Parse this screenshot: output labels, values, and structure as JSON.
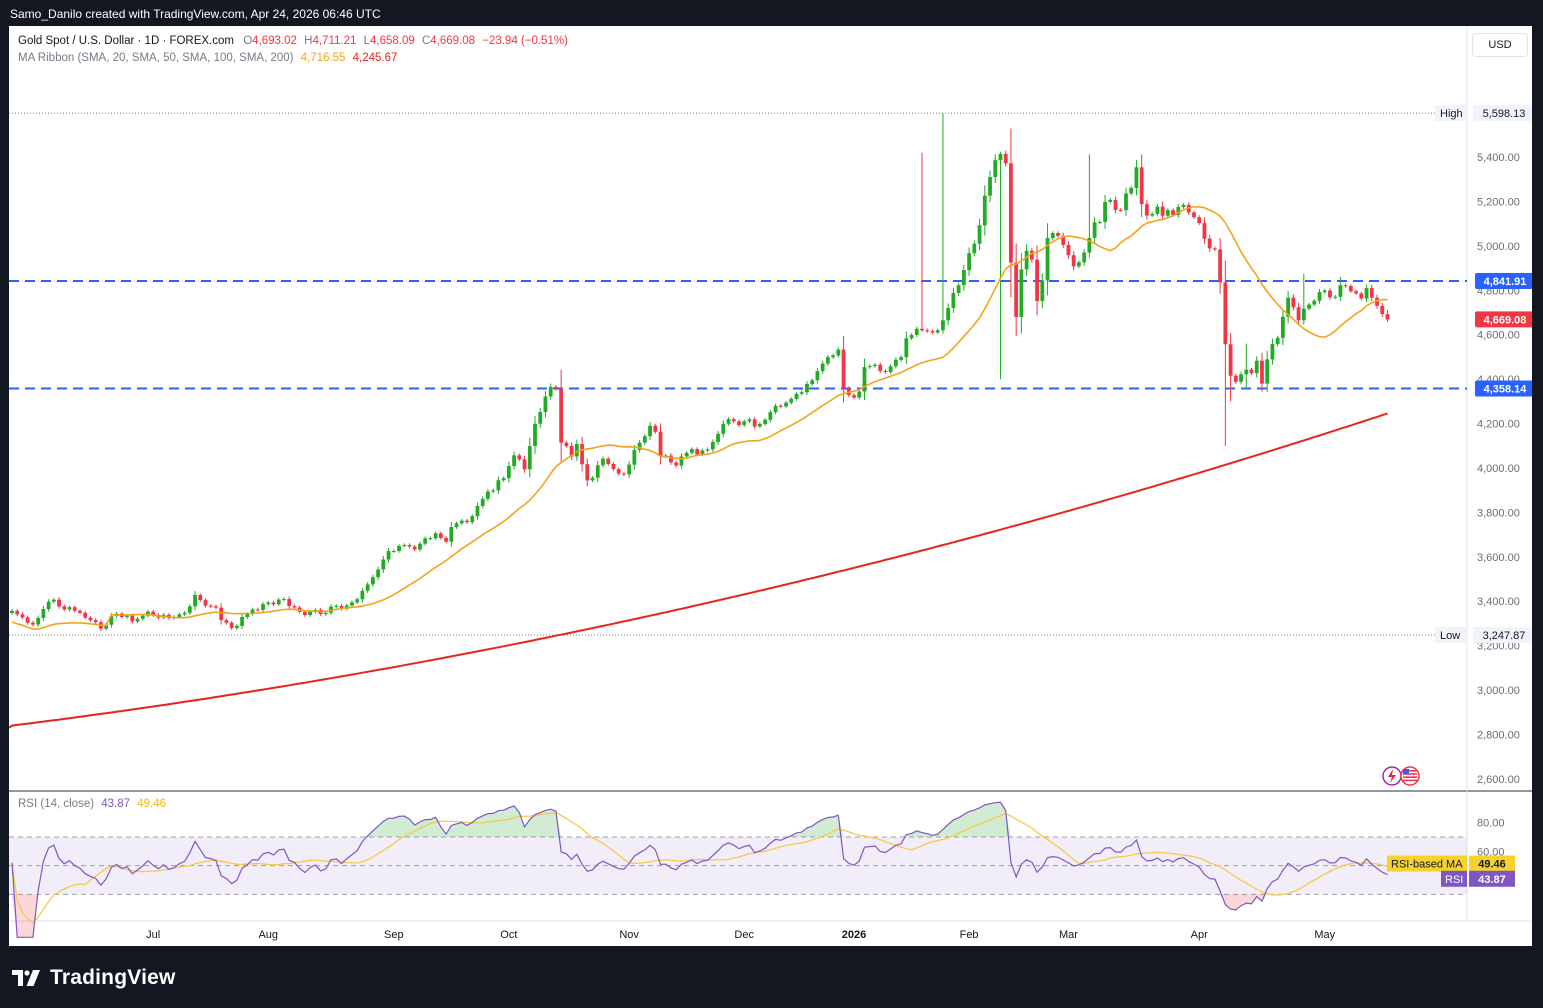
{
  "header": {
    "text": "Samo_Danilo created with TradingView.com, Apr 24, 2026 06:46 UTC"
  },
  "legend": {
    "symbol": "Gold Spot / U.S. Dollar · 1D · FOREX.com",
    "o_label": "O",
    "o_value": "4,693.02",
    "h_label": "H",
    "h_value": "4,711.21",
    "l_label": "L",
    "l_value": "4,658.09",
    "c_label": "C",
    "c_value": "4,669.08",
    "change": "−23.94 (−0.51%)",
    "ma_label": "MA Ribbon (SMA, 20, SMA, 50, SMA, 100, SMA, 200)",
    "ma20_value": "4,716.55",
    "ma200_value": "4,245.67"
  },
  "currency_button": "USD",
  "rsi_legend": {
    "label": "RSI (14, close)",
    "rsi_value": "43.87",
    "ma_value": "49.46"
  },
  "footer": {
    "brand": "TradingView"
  },
  "colors": {
    "up": "#089981",
    "up_fill": "#22ab24",
    "down": "#f23645",
    "ma20": "#f7a21b",
    "ma200": "#e8251c",
    "level_line": "#2962ff",
    "rsi": "#7e57c2",
    "rsi_ma": "#f7c948"
  },
  "icons": [
    "flash-icon",
    "us-flag-icon",
    "tradingview-logo-icon"
  ],
  "chart_data": [
    {
      "type": "candlestick",
      "symbol": "XAUUSD",
      "timeframe": "1D",
      "x_labels": [
        "Jul",
        "Aug",
        "Sep",
        "Oct",
        "Nov",
        "Dec",
        "2026",
        "Feb",
        "Mar",
        "Apr",
        "May"
      ],
      "y_ticks": [
        5400,
        5200,
        5000,
        4800,
        4600,
        4400,
        4200,
        4000,
        3800,
        3600,
        3400,
        3200,
        3000,
        2800,
        2600
      ],
      "y_tick_labels": [
        "5,400.00",
        "5,200.00",
        "5,000.00",
        "4,800.00",
        "4,600.00",
        "4,400.00",
        "4,200.00",
        "4,000.00",
        "3,800.00",
        "3,600.00",
        "3,400.00",
        "3,200.00",
        "3,000.00",
        "2,800.00",
        "2,600.00"
      ],
      "ylim": [
        2550,
        5720
      ],
      "closes": [
        3357,
        3341,
        3327,
        3303,
        3295,
        3325,
        3365,
        3398,
        3407,
        3377,
        3363,
        3373,
        3357,
        3348,
        3326,
        3315,
        3306,
        3276,
        3294,
        3333,
        3344,
        3329,
        3335,
        3309,
        3321,
        3335,
        3353,
        3338,
        3326,
        3339,
        3324,
        3329,
        3341,
        3348,
        3377,
        3428,
        3405,
        3380,
        3377,
        3371,
        3315,
        3303,
        3279,
        3289,
        3329,
        3343,
        3363,
        3361,
        3387,
        3394,
        3386,
        3407,
        3410,
        3378,
        3372,
        3352,
        3338,
        3353,
        3361,
        3342,
        3348,
        3376,
        3379,
        3366,
        3381,
        3395,
        3409,
        3447,
        3476,
        3508,
        3543,
        3588,
        3626,
        3626,
        3649,
        3653,
        3646,
        3633,
        3659,
        3683,
        3684,
        3706,
        3685,
        3668,
        3734,
        3751,
        3763,
        3756,
        3783,
        3829,
        3861,
        3894,
        3899,
        3945,
        3954,
        4009,
        4057,
        4039,
        3994,
        4099,
        4199,
        4252,
        4322,
        4365,
        4357,
        4114,
        4099,
        4052,
        4108,
        4017,
        3944,
        3956,
        4012,
        4042,
        4018,
        3995,
        3975,
        3971,
        4015,
        4081,
        4114,
        4143,
        4190,
        4163,
        4054,
        4056,
        4025,
        4011,
        4052,
        4068,
        4085,
        4061,
        4079,
        4084,
        4117,
        4154,
        4199,
        4220,
        4210,
        4193,
        4210,
        4219,
        4187,
        4198,
        4217,
        4251,
        4280,
        4277,
        4294,
        4311,
        4334,
        4341,
        4378,
        4395,
        4436,
        4470,
        4499,
        4507,
        4533,
        4357,
        4328,
        4317,
        4344,
        4454,
        4459,
        4465,
        4437,
        4432,
        4458,
        4487,
        4499,
        4584,
        4599,
        4627,
        4620,
        4616,
        4610,
        4620,
        4665,
        4721,
        4788,
        4823,
        4891,
        4967,
        5010,
        5093,
        5226,
        5310,
        5386,
        5414,
        5372,
        4925,
        4680,
        4894,
        4978,
        4938,
        4752,
        4844,
        5035,
        5058,
        5045,
        5004,
        4958,
        4908,
        4926,
        4970,
        5036,
        5106,
        5108,
        5198,
        5207,
        5162,
        5161,
        5236,
        5261,
        5354,
        5188,
        5137,
        5144,
        5177,
        5136,
        5161,
        5139,
        5175,
        5185,
        5151,
        5129,
        5103,
        5033,
        4989,
        4984,
        4836,
        4557,
        4415,
        4388,
        4422,
        4443,
        4427,
        4483,
        4380,
        4489,
        4558,
        4586,
        4681,
        4767,
        4724,
        4665,
        4717,
        4736,
        4753,
        4792,
        4799,
        4768,
        4771,
        4823,
        4819,
        4796,
        4786,
        4763,
        4810,
        4767,
        4730,
        4693,
        4669
      ],
      "open_last": 4693.02,
      "high_last": 4711.21,
      "low_last": 4658.09,
      "close_last": 4669.08,
      "change": -23.94,
      "change_pct": -0.51,
      "hi_wicks": [
        [
          178,
          5598.13
        ],
        [
          174,
          5420
        ],
        [
          206,
          5412
        ],
        [
          220,
          5200
        ],
        [
          236,
          4560
        ],
        [
          254,
          4860
        ],
        [
          247,
          4874
        ]
      ],
      "lo_wicks": [
        [
          189,
          4400
        ],
        [
          232,
          4099
        ],
        [
          233,
          4300
        ],
        [
          236,
          4360
        ]
      ],
      "ma20_end": 4716.55,
      "ma200_start": 2840,
      "ma200_end": 4245.67,
      "annotations": {
        "high_label": "High",
        "high_value": "5,598.13",
        "high": 5598.13,
        "low_label": "Low",
        "low_value": "3,247.87",
        "low": 3247.87,
        "resistance_value": "4,841.91",
        "resistance": 4841.91,
        "support_value": "4,358.14",
        "support": 4358.14,
        "last_price_value": "4,669.08",
        "last_price": 4669.08
      }
    },
    {
      "type": "line",
      "name": "RSI (14, close)",
      "y_ticks": [
        80,
        60
      ],
      "y_tick_labels": [
        "80.00",
        "60.00"
      ],
      "ylim": [
        10,
        100
      ],
      "bands": [
        70,
        50,
        30
      ],
      "rsi_last": 43.87,
      "rsi_ma_last": 49.46,
      "rsi_ma_label": "RSI-based MA",
      "rsi_label": "RSI",
      "rsi_ma_value": "49.46",
      "rsi_value": "43.87"
    }
  ]
}
